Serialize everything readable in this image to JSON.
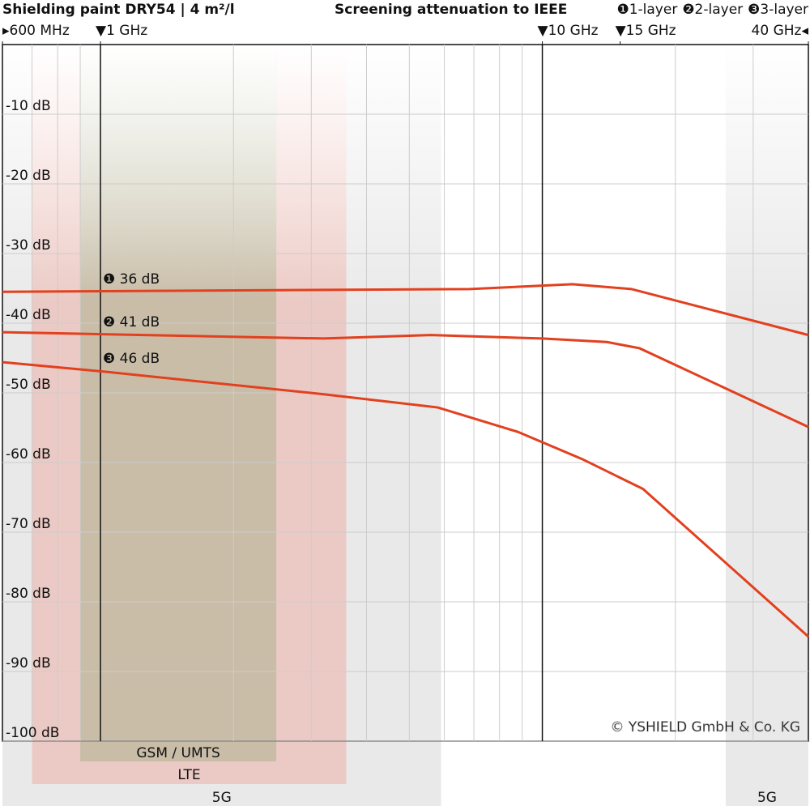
{
  "chart_data": {
    "type": "line",
    "title": "Shielding paint DRY54 | 4 m²/l",
    "subtitle": "Screening attenuation to IEEE",
    "log_x": true,
    "xlim": [
      0.6,
      40
    ],
    "ylim": [
      -100,
      0
    ],
    "xticks": [
      {
        "value": 0.6,
        "label": "▸600 MHz"
      },
      {
        "value": 1,
        "label": "▼1 GHz"
      },
      {
        "value": 10,
        "label": "▼10 GHz"
      },
      {
        "value": 15,
        "label": "▼15 GHz"
      },
      {
        "value": 40,
        "label": "40 GHz◂"
      }
    ],
    "x_major_lines": [
      1,
      10
    ],
    "x_minor_grid": [
      0.7,
      0.8,
      0.9,
      2,
      3,
      4,
      5,
      6,
      7,
      8,
      9,
      20,
      30
    ],
    "yticks": [
      {
        "value": -10,
        "label": "-10 dB"
      },
      {
        "value": -20,
        "label": "-20 dB"
      },
      {
        "value": -30,
        "label": "-30 dB"
      },
      {
        "value": -40,
        "label": "-40 dB"
      },
      {
        "value": -50,
        "label": "-50 dB"
      },
      {
        "value": -60,
        "label": "-60 dB"
      },
      {
        "value": -70,
        "label": "-70 dB"
      },
      {
        "value": -80,
        "label": "-80 dB"
      },
      {
        "value": -90,
        "label": "-90 dB"
      },
      {
        "value": -100,
        "label": "-100 dB"
      }
    ],
    "grid": true,
    "series": [
      {
        "name": "❶1-layer",
        "color": "#e2401e",
        "x": [
          0.6,
          6.85,
          11.7,
          15.9,
          40
        ],
        "values": [
          -35.5,
          -35.1,
          -34.4,
          -35.1,
          -41.7
        ]
      },
      {
        "name": "❷2-layer",
        "color": "#e2401e",
        "x": [
          0.6,
          3.2,
          5.6,
          10,
          14,
          16.6,
          40
        ],
        "values": [
          -41.3,
          -42.2,
          -41.7,
          -42.2,
          -42.7,
          -43.6,
          -54.9
        ]
      },
      {
        "name": "❸3-layer",
        "color": "#e2401e",
        "x": [
          0.6,
          1,
          3.2,
          5.8,
          8.8,
          12.3,
          16.9,
          40
        ],
        "values": [
          -45.6,
          -46.9,
          -50.2,
          -52.1,
          -55.6,
          -59.5,
          -63.8,
          -85
        ]
      }
    ],
    "annotations": [
      "❶ 36 dB",
      "❷ 41 dB",
      "❸ 46 dB"
    ],
    "bands": [
      {
        "label": "5G",
        "range": [
          0.6,
          5.9
        ],
        "color": "#cfcfcf"
      },
      {
        "label": "5G",
        "range": [
          26,
          40
        ],
        "color": "#cfcfcf"
      },
      {
        "label": "LTE",
        "range": [
          0.7,
          3.6
        ],
        "color": "#eea49a"
      },
      {
        "label": "GSM / UMTS",
        "range": [
          0.9,
          2.5
        ],
        "color": "#9fae86"
      }
    ],
    "copyright": "© YSHIELD GmbH & Co. KG"
  }
}
